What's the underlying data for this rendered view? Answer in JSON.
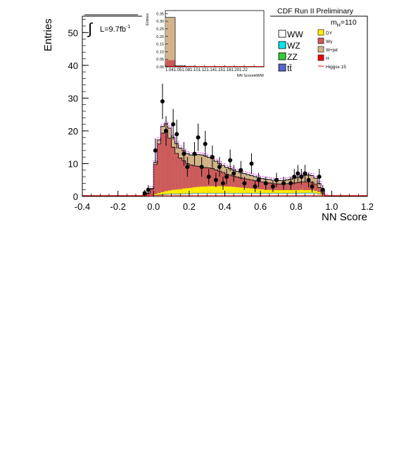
{
  "chart_data": {
    "type": "bar",
    "title": "",
    "header_label": "CDF Run II Preliminary",
    "xlabel": "NN Score",
    "ylabel": "Entries",
    "lumi_label": "L=9.7fb",
    "lumi_exp": "-1",
    "integral_symbol": "∫",
    "mass_label_base": "m",
    "mass_label_sub": "H",
    "mass_label_value": "=110",
    "xlim": [
      -0.4,
      1.2
    ],
    "ylim": [
      0,
      55
    ],
    "xticks": [
      "-0.4",
      "-0.2",
      "0.0",
      "0.2",
      "0.4",
      "0.6",
      "0.8",
      "1.0",
      "1.2"
    ],
    "yticks": [
      "0",
      "10",
      "20",
      "30",
      "40",
      "50"
    ],
    "bin_width": 0.02,
    "bin_start": -0.06,
    "bins_lo": [
      -0.06,
      -0.04,
      -0.02,
      0.0,
      0.02,
      0.04,
      0.06,
      0.08,
      0.1,
      0.12,
      0.14,
      0.16,
      0.18,
      0.2,
      0.22,
      0.24,
      0.26,
      0.28,
      0.3,
      0.32,
      0.34,
      0.36,
      0.38,
      0.4,
      0.42,
      0.44,
      0.46,
      0.48,
      0.5,
      0.52,
      0.54,
      0.56,
      0.58,
      0.6,
      0.62,
      0.64,
      0.66,
      0.68,
      0.7,
      0.72,
      0.74,
      0.76,
      0.78,
      0.8,
      0.82,
      0.84,
      0.86,
      0.88,
      0.9,
      0.92,
      0.94,
      0.96
    ],
    "series": [
      {
        "name": "WW",
        "color": "#ffffff",
        "values": [
          0,
          0,
          0.1,
          0.2,
          0.3,
          0.4,
          0.5,
          0.6,
          0.6,
          0.6,
          0.6,
          0.7,
          0.7,
          0.7,
          0.8,
          0.8,
          0.8,
          0.8,
          0.8,
          0.8,
          0.8,
          0.8,
          0.8,
          0.8,
          0.8,
          0.8,
          0.8,
          0.8,
          0.8,
          0.8,
          0.8,
          0.8,
          0.8,
          0.8,
          0.8,
          0.8,
          0.8,
          0.8,
          0.8,
          0.8,
          0.8,
          0.8,
          0.8,
          0.8,
          0.9,
          0.9,
          0.9,
          0.9,
          0.8,
          0.6,
          0.3,
          0
        ]
      },
      {
        "name": "WZ",
        "color": "#00e5ee",
        "values": [
          0,
          0,
          0,
          0.05,
          0.05,
          0.05,
          0.05,
          0.05,
          0.05,
          0.05,
          0.05,
          0.05,
          0.05,
          0.05,
          0.05,
          0.05,
          0.05,
          0.05,
          0.05,
          0.05,
          0.05,
          0.05,
          0.05,
          0.05,
          0.05,
          0.05,
          0.05,
          0.05,
          0.05,
          0.05,
          0.05,
          0.05,
          0.05,
          0.05,
          0.05,
          0.05,
          0.05,
          0.05,
          0.05,
          0.05,
          0.05,
          0.05,
          0.05,
          0.05,
          0.05,
          0.05,
          0.05,
          0.05,
          0.05,
          0.05,
          0,
          0
        ]
      },
      {
        "name": "ZZ",
        "color": "#33cc33",
        "values": [
          0,
          0,
          0,
          0.05,
          0.05,
          0.05,
          0.05,
          0.05,
          0.05,
          0.05,
          0.05,
          0.05,
          0.05,
          0.05,
          0.05,
          0.05,
          0.05,
          0.05,
          0.05,
          0.05,
          0.05,
          0.05,
          0.05,
          0.05,
          0.05,
          0.05,
          0.05,
          0.05,
          0.05,
          0.05,
          0.05,
          0.05,
          0.05,
          0.05,
          0.05,
          0.05,
          0.05,
          0.05,
          0.05,
          0.05,
          0.05,
          0.05,
          0.05,
          0.05,
          0.05,
          0.05,
          0.05,
          0.05,
          0.05,
          0.05,
          0,
          0
        ]
      },
      {
        "name": "tt̄",
        "color": "#5566cc",
        "values": [
          0,
          0,
          0,
          0.1,
          0.1,
          0.1,
          0.1,
          0.1,
          0.1,
          0.1,
          0.1,
          0.1,
          0.1,
          0.1,
          0.1,
          0.1,
          0.1,
          0.1,
          0.1,
          0.1,
          0.1,
          0.1,
          0.1,
          0.1,
          0.1,
          0.1,
          0.1,
          0.1,
          0.1,
          0.1,
          0.1,
          0.1,
          0.1,
          0.1,
          0.1,
          0.1,
          0.1,
          0.1,
          0.1,
          0.1,
          0.1,
          0.1,
          0.1,
          0.1,
          0.1,
          0.1,
          0.1,
          0.1,
          0.1,
          0.1,
          0,
          0
        ]
      },
      {
        "name": "DY",
        "color": "#ffee00",
        "values": [
          0,
          0,
          0.1,
          0.3,
          0.5,
          0.7,
          0.9,
          1.0,
          1.2,
          1.3,
          1.4,
          1.5,
          1.6,
          1.7,
          1.8,
          1.9,
          2.0,
          2.0,
          2.1,
          2.1,
          2.1,
          2.1,
          2.1,
          2.0,
          2.0,
          1.9,
          1.8,
          1.7,
          1.6,
          1.5,
          1.4,
          1.3,
          1.2,
          1.1,
          1.0,
          1.0,
          0.9,
          0.9,
          0.9,
          0.9,
          0.9,
          0.9,
          0.9,
          0.9,
          0.9,
          0.8,
          0.8,
          0.8,
          0.7,
          0.5,
          0.2,
          0
        ]
      },
      {
        "name": "Wγ",
        "color": "#cc5c5c",
        "values": [
          0.5,
          1,
          2,
          9,
          15,
          18,
          18,
          16,
          13,
          11,
          9.5,
          8.5,
          7.5,
          7,
          6.5,
          6.3,
          6,
          5.8,
          5.6,
          5.4,
          5,
          4.6,
          4.2,
          3.8,
          3.5,
          3.3,
          3.1,
          2.9,
          2.8,
          2.7,
          2.6,
          2.5,
          2.4,
          2.3,
          2.2,
          2.1,
          2.0,
          1.9,
          1.9,
          1.9,
          2.0,
          2.1,
          2.2,
          2.3,
          2.4,
          2.5,
          2.5,
          2.4,
          2.0,
          1.4,
          0.6,
          0
        ]
      },
      {
        "name": "W+jet",
        "color": "#d2b48c",
        "values": [
          0,
          0,
          0.2,
          0.6,
          1.2,
          2,
          2.5,
          3,
          3,
          3,
          3,
          3,
          3,
          3,
          3.2,
          3.5,
          3.6,
          3.5,
          3.2,
          3,
          2.6,
          2.3,
          2.1,
          2,
          1.9,
          1.8,
          1.7,
          1.6,
          1.5,
          1.4,
          1.3,
          1.2,
          1.1,
          1.0,
          1.0,
          1.0,
          1.0,
          1.0,
          1.0,
          1.0,
          1.1,
          1.2,
          1.4,
          1.6,
          1.8,
          2.0,
          2.1,
          2.0,
          1.8,
          1.2,
          0.5,
          0
        ]
      },
      {
        "name": "H",
        "color": "#ee0000",
        "values": [
          0,
          0,
          0,
          0.05,
          0.05,
          0.05,
          0.05,
          0.05,
          0.05,
          0.05,
          0.05,
          0.05,
          0.05,
          0.05,
          0.05,
          0.05,
          0.05,
          0.05,
          0.05,
          0.05,
          0.05,
          0.05,
          0.05,
          0.05,
          0.05,
          0.05,
          0.05,
          0.05,
          0.05,
          0.05,
          0.05,
          0.05,
          0.05,
          0.05,
          0.05,
          0.05,
          0.05,
          0.05,
          0.05,
          0.05,
          0.05,
          0.05,
          0.05,
          0.05,
          0.05,
          0.05,
          0.05,
          0.05,
          0.05,
          0.05,
          0,
          0
        ]
      }
    ],
    "signal": {
      "name": "Higgsx 15",
      "color": "#ee0000"
    },
    "data_points": {
      "name": "Data",
      "x": [
        -0.05,
        -0.03,
        0.01,
        0.05,
        0.07,
        0.11,
        0.13,
        0.17,
        0.19,
        0.23,
        0.25,
        0.27,
        0.29,
        0.31,
        0.33,
        0.35,
        0.37,
        0.39,
        0.41,
        0.43,
        0.45,
        0.49,
        0.51,
        0.55,
        0.57,
        0.59,
        0.63,
        0.67,
        0.69,
        0.73,
        0.77,
        0.79,
        0.81,
        0.83,
        0.85,
        0.87,
        0.89,
        0.93,
        0.95
      ],
      "y": [
        1,
        2,
        14,
        29,
        20,
        22,
        19,
        13,
        9,
        13,
        18,
        9,
        16,
        6,
        12,
        5,
        9,
        4,
        6,
        11,
        7,
        8,
        4,
        10,
        3,
        5,
        4,
        3,
        5,
        4,
        4,
        6,
        7,
        6,
        7,
        5,
        3,
        6,
        2
      ],
      "err": [
        1,
        1.4,
        3.7,
        5.4,
        4.5,
        4.7,
        4.4,
        3.6,
        3,
        3.6,
        4.2,
        3,
        4,
        2.4,
        3.5,
        2.2,
        3,
        2,
        2.4,
        3.3,
        2.6,
        2.8,
        2,
        3.2,
        1.7,
        2.2,
        2,
        1.7,
        2.2,
        2,
        2,
        2.4,
        2.6,
        2.4,
        2.6,
        2.2,
        1.7,
        2.4,
        1.4
      ]
    },
    "legend_order_left": [
      "WW",
      "WZ",
      "ZZ",
      "tt̄"
    ],
    "legend_order_right": [
      "DY",
      "Wγ",
      "W+jet",
      "H",
      "Higgsx 15"
    ],
    "legend_placement": "top-right",
    "inset": {
      "type": "bar",
      "xlabel": "NN ScoreHWW",
      "ylabel": "Entries",
      "xtick_label": "1.041.051.081.101.121.141.151.181.201.22",
      "yticks": [
        "0.00",
        "0.05",
        "0.10",
        "0.15",
        "0.20",
        "0.25",
        "0.30",
        "0.35"
      ],
      "ylim": [
        0,
        0.37
      ],
      "bins": 10,
      "wjet": [
        0.28,
        0.003,
        0.002,
        0.002,
        0.002,
        0.001,
        0.001,
        0.001,
        0.001,
        0.001
      ],
      "wg": [
        0.04,
        0.003,
        0.002,
        0.001,
        0.001,
        0.001,
        0.001,
        0.001,
        0.001,
        0.001
      ],
      "ww": [
        0.005,
        0.001,
        0,
        0,
        0,
        0,
        0,
        0,
        0,
        0
      ]
    }
  }
}
